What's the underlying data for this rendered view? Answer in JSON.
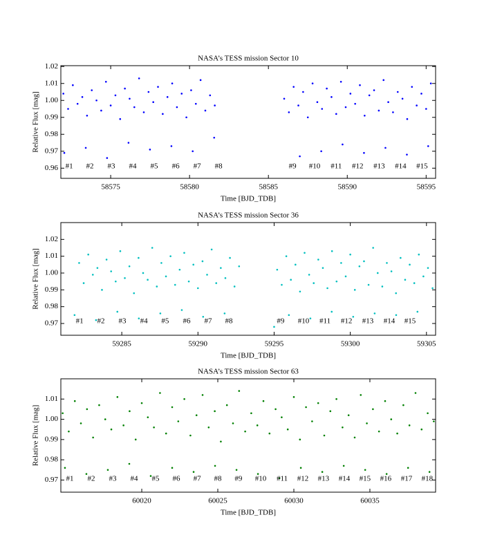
{
  "chart_data": [
    {
      "type": "scatter",
      "title": "NASA’s TESS mission Sector 10",
      "x_label": "Time [BJD_TDB]",
      "y_label": "Relative Flux [mag]",
      "color": "#0000ff",
      "xlim": [
        58571.84,
        58595.6
      ],
      "ylim": [
        0.954,
        1.0205
      ],
      "xticks": [
        58575,
        58580,
        58585,
        58590,
        58595
      ],
      "yticks": [
        0.96,
        0.97,
        0.98,
        0.99,
        {
          "value": 1,
          "label": "1.00"
        },
        1.01,
        1.02
      ],
      "x": [
        58572.0,
        58572.3,
        58572.6,
        58572.9,
        58573.2,
        58573.5,
        58573.8,
        58574.1,
        58574.4,
        58574.7,
        58575.0,
        58575.3,
        58575.6,
        58575.9,
        58576.2,
        58576.5,
        58576.8,
        58577.1,
        58577.4,
        58577.7,
        58578.0,
        58578.3,
        58578.6,
        58578.9,
        58579.2,
        58579.5,
        58579.8,
        58580.1,
        58580.4,
        58580.7,
        58581.0,
        58581.3,
        58581.6,
        58586.0,
        58586.3,
        58586.6,
        58586.9,
        58587.2,
        58587.5,
        58587.8,
        58588.1,
        58588.4,
        58588.7,
        58589.0,
        58589.3,
        58589.6,
        58589.9,
        58590.2,
        58590.5,
        58590.8,
        58591.1,
        58591.4,
        58591.7,
        58592.0,
        58592.3,
        58592.6,
        58592.9,
        58593.2,
        58593.5,
        58593.8,
        58594.1,
        58594.4,
        58594.7,
        58595.0,
        58595.3,
        58572.06,
        58573.42,
        58574.77,
        58576.13,
        58577.49,
        58578.85,
        58580.2,
        58581.56,
        58586.99,
        58588.35,
        58589.7,
        58591.06,
        58592.42,
        58593.78,
        58595.13
      ],
      "values": [
        1.004,
        0.995,
        1.009,
        0.998,
        1.002,
        0.991,
        1.006,
        1.0,
        0.994,
        1.011,
        0.997,
        1.003,
        0.989,
        1.007,
        1.001,
        0.996,
        1.013,
        0.993,
        1.005,
        0.999,
        1.008,
        0.992,
        1.002,
        1.01,
        0.996,
        1.004,
        0.99,
        1.006,
        0.998,
        1.012,
        0.994,
        1.003,
        0.997,
        1.001,
        0.993,
        1.008,
        0.997,
        1.005,
        0.99,
        1.01,
        0.999,
        0.995,
        1.007,
        1.002,
        0.992,
        1.011,
        0.996,
        1.004,
        0.998,
        1.009,
        0.991,
        1.003,
        1.006,
        0.994,
        1.012,
        0.999,
        0.993,
        1.005,
        1.001,
        0.989,
        1.008,
        0.997,
        1.004,
        0.995,
        1.01,
        0.969,
        0.972,
        0.966,
        0.975,
        0.971,
        0.973,
        0.97,
        0.978,
        0.967,
        0.97,
        0.974,
        0.969,
        0.972,
        0.968,
        0.973
      ],
      "annotations": [
        {
          "text": "#1",
          "x": 58572.37,
          "y": 0.961
        },
        {
          "text": "#2",
          "x": 58573.68,
          "y": 0.961
        },
        {
          "text": "#3",
          "x": 58575.04,
          "y": 0.961
        },
        {
          "text": "#4",
          "x": 58576.4,
          "y": 0.961
        },
        {
          "text": "#5",
          "x": 58577.76,
          "y": 0.961
        },
        {
          "text": "#6",
          "x": 58579.12,
          "y": 0.961
        },
        {
          "text": "#7",
          "x": 58580.48,
          "y": 0.961
        },
        {
          "text": "#8",
          "x": 58581.84,
          "y": 0.961
        },
        {
          "text": "#9",
          "x": 58586.53,
          "y": 0.961
        },
        {
          "text": "#10",
          "x": 58587.93,
          "y": 0.961
        },
        {
          "text": "#11",
          "x": 58589.3,
          "y": 0.961
        },
        {
          "text": "#12",
          "x": 58590.66,
          "y": 0.961
        },
        {
          "text": "#13",
          "x": 58592.02,
          "y": 0.961
        },
        {
          "text": "#14",
          "x": 58593.38,
          "y": 0.961
        },
        {
          "text": "#15",
          "x": 58594.74,
          "y": 0.961
        }
      ]
    },
    {
      "type": "scatter",
      "title": "NASA’s TESS mission Sector 36",
      "x_label": "Time [BJD_TDB]",
      "y_label": "Relative Flux [mag]",
      "color": "#00bfbf",
      "xlim": [
        59281.0,
        59305.6
      ],
      "ylim": [
        0.963,
        1.03
      ],
      "xticks": [
        59285,
        59290,
        59295,
        59300,
        59305
      ],
      "yticks": [
        0.97,
        0.98,
        0.99,
        {
          "value": 1,
          "label": "1.00"
        },
        1.01,
        1.02
      ],
      "x": [
        59282.2,
        59282.5,
        59282.8,
        59283.1,
        59283.4,
        59283.7,
        59284.0,
        59284.3,
        59284.6,
        59284.9,
        59285.2,
        59285.5,
        59285.8,
        59286.1,
        59286.4,
        59286.7,
        59287.0,
        59287.3,
        59287.6,
        59287.9,
        59288.2,
        59288.5,
        59288.8,
        59289.1,
        59289.4,
        59289.7,
        59290.0,
        59290.3,
        59290.6,
        59290.9,
        59291.2,
        59291.5,
        59291.8,
        59292.1,
        59292.4,
        59292.7,
        59295.2,
        59295.5,
        59295.8,
        59296.1,
        59296.4,
        59296.7,
        59297.0,
        59297.3,
        59297.6,
        59297.9,
        59298.2,
        59298.5,
        59298.8,
        59299.1,
        59299.4,
        59299.7,
        59300.0,
        59300.3,
        59300.6,
        59300.9,
        59301.2,
        59301.5,
        59301.8,
        59302.1,
        59302.4,
        59302.7,
        59303.0,
        59303.3,
        59303.6,
        59303.9,
        59304.2,
        59304.5,
        59304.8,
        59305.1,
        59305.4,
        59281.9,
        59283.31,
        59284.71,
        59286.12,
        59287.53,
        59288.94,
        59290.34,
        59291.75,
        59295.0,
        59295.97,
        59297.38,
        59298.78,
        59300.19,
        59301.6,
        59303.01,
        59304.41
      ],
      "values": [
        1.006,
        0.994,
        1.011,
        0.999,
        1.003,
        0.99,
        1.008,
        1.001,
        0.995,
        1.013,
        0.997,
        1.004,
        0.988,
        1.009,
        1.0,
        0.996,
        1.015,
        0.992,
        1.006,
        0.998,
        1.01,
        0.993,
        1.002,
        1.012,
        0.995,
        1.005,
        0.991,
        1.007,
        0.999,
        1.014,
        0.994,
        1.003,
        0.997,
        1.009,
        0.992,
        1.004,
        1.002,
        0.993,
        1.01,
        0.996,
        1.005,
        0.989,
        1.012,
        0.999,
        0.994,
        1.008,
        1.003,
        0.991,
        1.013,
        0.995,
        1.006,
        0.998,
        1.011,
        0.99,
        1.004,
        1.007,
        0.993,
        1.015,
        1.0,
        0.992,
        1.006,
        1.001,
        0.988,
        1.009,
        0.996,
        1.005,
        0.994,
        1.011,
        0.998,
        1.003,
        0.991,
        0.975,
        0.972,
        0.977,
        0.973,
        0.976,
        0.978,
        0.974,
        0.976,
        0.968,
        0.975,
        0.973,
        0.977,
        0.974,
        0.976,
        0.975,
        0.977
      ],
      "annotations": [
        {
          "text": "#1",
          "x": 59282.23,
          "y": 0.9712
        },
        {
          "text": "#2",
          "x": 59283.63,
          "y": 0.9712
        },
        {
          "text": "#3",
          "x": 59285.04,
          "y": 0.9712
        },
        {
          "text": "#4",
          "x": 59286.45,
          "y": 0.9712
        },
        {
          "text": "#5",
          "x": 59287.85,
          "y": 0.9712
        },
        {
          "text": "#6",
          "x": 59289.26,
          "y": 0.9712
        },
        {
          "text": "#7",
          "x": 59290.67,
          "y": 0.9712
        },
        {
          "text": "#8",
          "x": 59292.03,
          "y": 0.9712
        },
        {
          "text": "#9",
          "x": 59295.43,
          "y": 0.9712
        },
        {
          "text": "#10",
          "x": 59296.93,
          "y": 0.9712
        },
        {
          "text": "#11",
          "x": 59298.34,
          "y": 0.9712
        },
        {
          "text": "#12",
          "x": 59299.75,
          "y": 0.9712
        },
        {
          "text": "#13",
          "x": 59301.15,
          "y": 0.9712
        },
        {
          "text": "#14",
          "x": 59302.56,
          "y": 0.9712
        },
        {
          "text": "#15",
          "x": 59303.92,
          "y": 0.9712
        }
      ]
    },
    {
      "type": "scatter",
      "title": "NASA’s TESS mission Sector 63",
      "x_label": "Time [BJD_TDB]",
      "y_label": "Relative Flux [mag]",
      "color": "#008000",
      "xlim": [
        60014.68,
        60039.32
      ],
      "ylim": [
        0.964,
        1.02
      ],
      "xticks": [
        60020,
        60025,
        60030,
        60035
      ],
      "yticks": [
        0.97,
        0.98,
        0.99,
        {
          "value": 1,
          "label": "1.00"
        },
        1.01
      ],
      "x": [
        60014.8,
        60015.2,
        60015.6,
        60016.0,
        60016.4,
        60016.8,
        60017.2,
        60017.6,
        60018.0,
        60018.4,
        60018.8,
        60019.2,
        60019.6,
        60020.0,
        60020.4,
        60020.8,
        60021.2,
        60021.6,
        60022.0,
        60022.4,
        60022.8,
        60023.2,
        60023.6,
        60024.0,
        60024.4,
        60024.8,
        60025.2,
        60025.6,
        60026.0,
        60026.4,
        60026.8,
        60027.2,
        60027.6,
        60028.0,
        60028.4,
        60028.8,
        60029.2,
        60029.6,
        60030.0,
        60030.4,
        60030.8,
        60031.2,
        60031.6,
        60032.0,
        60032.4,
        60032.8,
        60033.2,
        60033.6,
        60034.0,
        60034.4,
        60034.8,
        60035.2,
        60035.6,
        60036.0,
        60036.4,
        60036.8,
        60037.2,
        60037.6,
        60038.0,
        60038.4,
        60038.8,
        60039.2,
        60014.95,
        60016.36,
        60017.77,
        60019.18,
        60020.59,
        60022.0,
        60023.41,
        60024.82,
        60026.23,
        60027.64,
        60029.05,
        60030.46,
        60031.87,
        60033.28,
        60034.69,
        60036.1,
        60037.51,
        60038.92
      ],
      "values": [
        1.003,
        0.994,
        1.009,
        0.998,
        1.005,
        0.991,
        1.007,
        1.0,
        0.995,
        1.011,
        0.997,
        1.004,
        0.99,
        1.008,
        1.001,
        0.996,
        1.013,
        0.993,
        1.006,
        0.999,
        1.01,
        0.992,
        1.002,
        1.012,
        0.996,
        1.004,
        0.989,
        1.007,
        0.998,
        1.014,
        0.994,
        1.003,
        0.997,
        1.009,
        0.993,
        1.005,
        1.001,
        0.995,
        1.011,
        0.99,
        1.006,
        0.999,
        1.008,
        0.992,
        1.004,
        1.01,
        0.996,
        1.002,
        0.991,
        1.012,
        0.998,
        1.005,
        0.994,
        1.009,
        1.0,
        0.993,
        1.007,
        0.997,
        1.013,
        0.995,
        1.003,
        0.999,
        0.976,
        0.973,
        0.975,
        0.978,
        0.972,
        0.976,
        0.974,
        0.977,
        0.975,
        0.973,
        0.971,
        0.976,
        0.974,
        0.977,
        0.975,
        0.973,
        0.976,
        0.974
      ],
      "annotations": [
        {
          "text": "#1",
          "x": 60015.27,
          "y": 0.9705
        },
        {
          "text": "#2",
          "x": 60016.68,
          "y": 0.9705
        },
        {
          "text": "#3",
          "x": 60018.09,
          "y": 0.9705
        },
        {
          "text": "#4",
          "x": 60019.5,
          "y": 0.9705
        },
        {
          "text": "#5",
          "x": 60020.91,
          "y": 0.9705
        },
        {
          "text": "#6",
          "x": 60022.27,
          "y": 0.9705
        },
        {
          "text": "#7",
          "x": 60023.64,
          "y": 0.9705
        },
        {
          "text": "#8",
          "x": 60025.0,
          "y": 0.9705
        },
        {
          "text": "#9",
          "x": 60026.36,
          "y": 0.9705
        },
        {
          "text": "#10",
          "x": 60027.82,
          "y": 0.9705
        },
        {
          "text": "#11",
          "x": 60029.23,
          "y": 0.9705
        },
        {
          "text": "#12",
          "x": 60030.59,
          "y": 0.9705
        },
        {
          "text": "#13",
          "x": 60031.95,
          "y": 0.9705
        },
        {
          "text": "#14",
          "x": 60033.32,
          "y": 0.9705
        },
        {
          "text": "#15",
          "x": 60034.68,
          "y": 0.9705
        },
        {
          "text": "#16",
          "x": 60036.04,
          "y": 0.9705
        },
        {
          "text": "#17",
          "x": 60037.41,
          "y": 0.9705
        },
        {
          "text": "#18",
          "x": 60038.77,
          "y": 0.9705
        }
      ]
    }
  ]
}
